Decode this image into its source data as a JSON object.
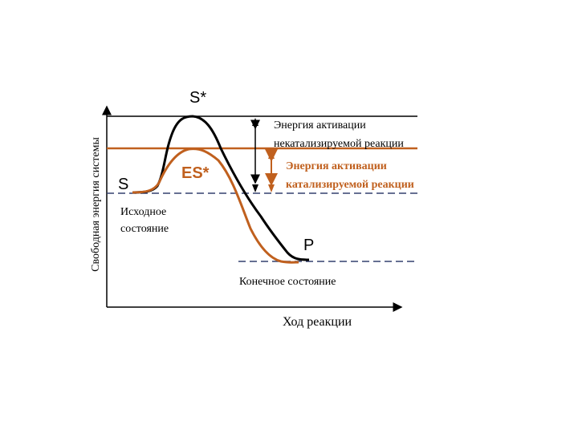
{
  "labels": {
    "transition_uncatalyzed": "S*",
    "substrate": "S",
    "transition_catalyzed": "ES*",
    "product": "P"
  },
  "uncatalyzed_activation": {
    "lines": [
      "Энергия активации",
      "некатализируемой реакции"
    ]
  },
  "catalyzed_activation": {
    "lines": [
      "Энергия активации",
      "катализируемой реакции"
    ]
  },
  "initial_state": {
    "lines": [
      "Исходное",
      "состояние"
    ]
  },
  "final_state": "Конечное состояние",
  "x_axis_label": "Ход реакции",
  "y_axis_label": "Свободная энергия системы"
}
